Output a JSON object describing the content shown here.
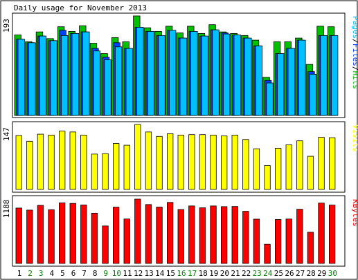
{
  "title": "Daily usage for November 2013",
  "colors": {
    "background": "#ffffff",
    "frame": "#000000",
    "hits": "#00c000",
    "files": "#0040ff",
    "pages": "#00c0ff",
    "visits": "#ffff00",
    "kbytes": "#ff0000",
    "weekday_label": "#000000",
    "weekend_label": "#008000"
  },
  "chart_data": [
    {
      "type": "bar",
      "panel": "hits-files-pages",
      "categories": [
        "1",
        "2",
        "3",
        "4",
        "5",
        "6",
        "7",
        "8",
        "9",
        "10",
        "11",
        "12",
        "13",
        "14",
        "15",
        "16",
        "17",
        "18",
        "19",
        "20",
        "21",
        "22",
        "23",
        "24",
        "25",
        "26",
        "27",
        "28",
        "29",
        "30"
      ],
      "weekend_days": [
        "2",
        "3",
        "9",
        "10",
        "16",
        "17",
        "23",
        "24",
        "30"
      ],
      "ymax_label": "193",
      "ylim": [
        0,
        193
      ],
      "axis_label_parts": [
        {
          "text": "Pages",
          "color": "#00c0ff"
        },
        {
          "text": "/",
          "color": "#000000"
        },
        {
          "text": "Files",
          "color": "#0040ff"
        },
        {
          "text": "/",
          "color": "#000000"
        },
        {
          "text": "Hits",
          "color": "#00c000"
        }
      ],
      "series": [
        {
          "name": "Hits",
          "color": "#00c000",
          "values": [
            156,
            143,
            162,
            149,
            172,
            163,
            174,
            140,
            120,
            151,
            143,
            193,
            170,
            163,
            173,
            160,
            173,
            159,
            176,
            162,
            159,
            155,
            146,
            74,
            143,
            143,
            150,
            99,
            173,
            172
          ]
        },
        {
          "name": "Files",
          "color": "#0040ff",
          "values": [
            148,
            141,
            154,
            145,
            165,
            159,
            162,
            130,
            113,
            141,
            130,
            171,
            163,
            155,
            165,
            150,
            163,
            154,
            166,
            160,
            156,
            150,
            135,
            68,
            120,
            130,
            146,
            85,
            155,
            155
          ]
        },
        {
          "name": "Pages",
          "color": "#00c0ff",
          "values": [
            148,
            141,
            154,
            145,
            155,
            159,
            162,
            125,
            108,
            133,
            130,
            171,
            163,
            155,
            165,
            150,
            163,
            154,
            166,
            158,
            156,
            150,
            135,
            63,
            120,
            130,
            146,
            80,
            155,
            155
          ]
        }
      ]
    },
    {
      "type": "bar",
      "panel": "visits",
      "categories": [
        "1",
        "2",
        "3",
        "4",
        "5",
        "6",
        "7",
        "8",
        "9",
        "10",
        "11",
        "12",
        "13",
        "14",
        "15",
        "16",
        "17",
        "18",
        "19",
        "20",
        "21",
        "22",
        "23",
        "24",
        "25",
        "26",
        "27",
        "28",
        "29",
        "30"
      ],
      "ymax_label": "147",
      "ylim": [
        0,
        147
      ],
      "axis_label_parts": [
        {
          "text": "Visits",
          "color": "#ffff00"
        }
      ],
      "series": [
        {
          "name": "Visits",
          "color": "#ffff00",
          "values": [
            122,
            109,
            125,
            123,
            132,
            130,
            123,
            80,
            81,
            104,
            100,
            147,
            130,
            120,
            126,
            123,
            124,
            124,
            123,
            121,
            123,
            113,
            92,
            54,
            93,
            101,
            110,
            75,
            118,
            117
          ]
        }
      ]
    },
    {
      "type": "bar",
      "panel": "kbytes",
      "categories": [
        "1",
        "2",
        "3",
        "4",
        "5",
        "6",
        "7",
        "8",
        "9",
        "10",
        "11",
        "12",
        "13",
        "14",
        "15",
        "16",
        "17",
        "18",
        "19",
        "20",
        "21",
        "22",
        "23",
        "24",
        "25",
        "26",
        "27",
        "28",
        "29",
        "30"
      ],
      "ymax_label": "1188",
      "ylim": [
        0,
        1188
      ],
      "axis_label_parts": [
        {
          "text": "KBytes",
          "color": "#ff0000"
        }
      ],
      "series": [
        {
          "name": "KBytes",
          "color": "#ff0000",
          "values": [
            1023,
            985,
            1073,
            992,
            1119,
            1109,
            1080,
            928,
            692,
            1040,
            821,
            1188,
            1088,
            1041,
            1127,
            996,
            1062,
            1028,
            1062,
            1049,
            1052,
            963,
            818,
            355,
            811,
            820,
            1001,
            576,
            1115,
            1078
          ]
        }
      ]
    }
  ]
}
